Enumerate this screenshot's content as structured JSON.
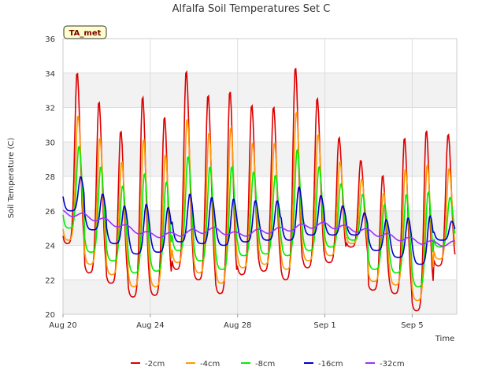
{
  "chart_data": {
    "type": "line",
    "title": "Alfalfa Soil Temperatures Set C",
    "xlabel": "Time",
    "ylabel": "Soil Temperature (C)",
    "badge": "TA_met",
    "ylim": [
      20,
      36
    ],
    "yticks": [
      20,
      22,
      24,
      26,
      28,
      30,
      32,
      34,
      36
    ],
    "xlim": [
      "2023-08-20 00:00",
      "2023-09-07 01:00"
    ],
    "xticks": [
      {
        "value": "2023-08-20",
        "label": "Aug 20"
      },
      {
        "value": "2023-08-24",
        "label": "Aug 24"
      },
      {
        "value": "2023-08-28",
        "label": "Aug 28"
      },
      {
        "value": "2023-09-01",
        "label": "Sep 1"
      },
      {
        "value": "2023-09-05",
        "label": "Sep 5"
      }
    ],
    "grid": true,
    "legend_position": "bottom",
    "x_days": [
      "Aug 20",
      "Aug 21",
      "Aug 22",
      "Aug 23",
      "Aug 24",
      "Aug 25",
      "Aug 26",
      "Aug 27",
      "Aug 28",
      "Aug 29",
      "Aug 30",
      "Aug 31",
      "Sep 1",
      "Sep 2",
      "Sep 3",
      "Sep 4",
      "Sep 5",
      "Sep 6"
    ],
    "series": [
      {
        "name": "-2cm",
        "color": "#dd0000",
        "daily_min": [
          24.1,
          22.4,
          21.8,
          21.0,
          21.1,
          22.6,
          22.0,
          21.2,
          22.3,
          22.5,
          22.0,
          22.7,
          23.0,
          23.9,
          21.4,
          21.2,
          20.2,
          22.8
        ],
        "daily_max": [
          34.1,
          32.4,
          30.7,
          32.7,
          31.5,
          34.2,
          32.8,
          33.0,
          32.2,
          32.1,
          34.4,
          32.6,
          30.3,
          29.0,
          28.1,
          30.3,
          30.7,
          30.5
        ]
      },
      {
        "name": "-4cm",
        "color": "#ff9900",
        "daily_min": [
          24.3,
          22.9,
          22.3,
          21.6,
          21.6,
          23.0,
          22.4,
          21.8,
          22.7,
          22.9,
          22.6,
          23.1,
          23.4,
          24.1,
          21.9,
          21.7,
          20.8,
          23.2
        ],
        "daily_max": [
          31.6,
          30.3,
          28.9,
          30.2,
          29.3,
          31.4,
          30.6,
          30.9,
          30.0,
          30.0,
          31.8,
          30.5,
          28.9,
          27.9,
          27.1,
          28.5,
          28.7,
          28.5
        ]
      },
      {
        "name": "-8cm",
        "color": "#00ee00",
        "daily_min": [
          25.0,
          23.6,
          23.1,
          22.4,
          22.5,
          23.7,
          23.1,
          22.6,
          23.4,
          23.5,
          23.4,
          23.7,
          23.9,
          24.3,
          22.6,
          22.4,
          21.6,
          23.9
        ],
        "daily_max": [
          29.8,
          28.6,
          27.5,
          28.2,
          27.7,
          29.2,
          28.6,
          28.6,
          28.3,
          28.1,
          29.6,
          28.6,
          27.6,
          27.0,
          26.4,
          27.0,
          27.1,
          26.8
        ]
      },
      {
        "name": "-16cm",
        "color": "#0000cc",
        "daily_min": [
          26.0,
          24.9,
          24.1,
          23.5,
          23.6,
          24.2,
          24.1,
          24.0,
          24.2,
          24.3,
          24.3,
          24.6,
          24.6,
          24.6,
          23.7,
          23.3,
          22.9,
          24.3
        ],
        "daily_max": [
          28.0,
          27.0,
          26.3,
          26.4,
          26.2,
          27.0,
          26.8,
          26.7,
          26.6,
          26.6,
          27.4,
          26.9,
          26.3,
          25.9,
          25.5,
          25.6,
          25.7,
          25.4
        ]
      },
      {
        "name": "-32cm",
        "color": "#9933ff",
        "daily_mean": [
          25.9,
          25.7,
          25.4,
          25.0,
          24.6,
          24.6,
          24.8,
          24.9,
          24.6,
          24.8,
          24.9,
          25.1,
          25.2,
          25.0,
          24.8,
          24.5,
          24.3,
          24.1
        ],
        "daily_amplitude": 0.15
      }
    ]
  }
}
